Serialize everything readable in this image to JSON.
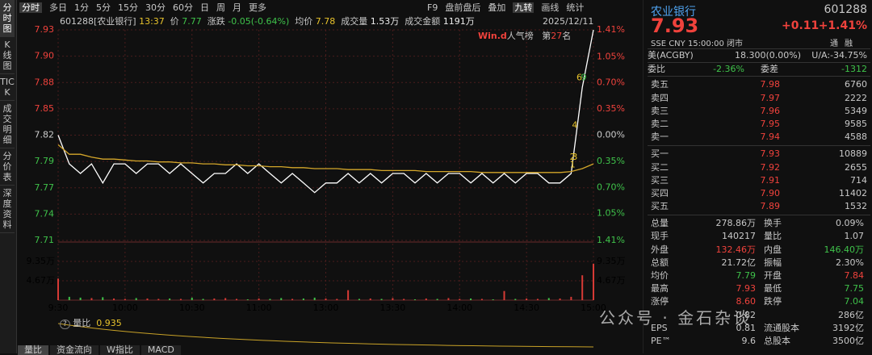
{
  "toolbar": {
    "periods": [
      "分时",
      "多日",
      "1分",
      "5分",
      "15分",
      "30分",
      "60分",
      "日",
      "周",
      "月",
      "更多"
    ],
    "tools": [
      "F9",
      "盘前盘后",
      "叠加",
      "九转",
      "画线",
      "统计"
    ]
  },
  "side_tabs": [
    "分时图",
    "K线图",
    "TICK",
    "成交明细",
    "分价表",
    "深度资料"
  ],
  "info": {
    "code": "601288[农业银行]",
    "time": "13:37",
    "price_label": "价",
    "price": "7.77",
    "change_label": "涨跌",
    "change": "-0.05(-0.64%)",
    "avg_label": "均价",
    "avg": "7.78",
    "vol_label": "成交量",
    "vol": "1.53万",
    "amount_label": "成交金额",
    "amount": "1191万",
    "date": "2025/12/11"
  },
  "rank": {
    "brand": "Win.d",
    "label": "人气榜",
    "pre": "第",
    "rank": "27",
    "post": "名"
  },
  "chart_data": {
    "type": "line",
    "x": [
      0,
      5,
      10,
      15,
      20,
      25,
      30,
      35,
      40,
      45,
      50,
      55,
      60,
      65,
      70,
      75,
      80,
      85,
      90,
      95,
      100,
      105,
      110,
      115,
      120,
      125,
      130,
      135,
      140,
      145,
      150,
      155,
      160,
      165,
      170,
      175,
      180,
      185,
      190,
      195,
      200,
      205,
      210,
      215,
      220,
      225,
      230,
      235,
      240
    ],
    "xlim": [
      0,
      240
    ],
    "xticks": [
      {
        "value": 0,
        "label": "9:30"
      },
      {
        "value": 30,
        "label": "10:00"
      },
      {
        "value": 60,
        "label": "10:30"
      },
      {
        "value": 90,
        "label": "11:00"
      },
      {
        "value": 120,
        "label": "13:00"
      },
      {
        "value": 150,
        "label": "13:30"
      },
      {
        "value": 180,
        "label": "14:00"
      },
      {
        "value": 210,
        "label": "14:30"
      },
      {
        "value": 240,
        "label": "15:00"
      }
    ],
    "series": [
      {
        "name": "价",
        "color": "#ffffff",
        "values": [
          7.82,
          7.79,
          7.78,
          7.79,
          7.77,
          7.79,
          7.79,
          7.78,
          7.79,
          7.79,
          7.78,
          7.79,
          7.78,
          7.77,
          7.78,
          7.78,
          7.79,
          7.78,
          7.79,
          7.78,
          7.77,
          7.78,
          7.77,
          7.76,
          7.77,
          7.77,
          7.78,
          7.77,
          7.78,
          7.77,
          7.78,
          7.78,
          7.77,
          7.78,
          7.77,
          7.78,
          7.78,
          7.77,
          7.78,
          7.77,
          7.78,
          7.77,
          7.78,
          7.78,
          7.77,
          7.77,
          7.78,
          7.87,
          7.93
        ]
      },
      {
        "name": "均价",
        "color": "#d4a62a",
        "values": [
          7.81,
          7.8,
          7.8,
          7.797,
          7.795,
          7.795,
          7.794,
          7.793,
          7.793,
          7.792,
          7.792,
          7.791,
          7.791,
          7.79,
          7.79,
          7.789,
          7.789,
          7.788,
          7.788,
          7.787,
          7.787,
          7.786,
          7.786,
          7.785,
          7.785,
          7.785,
          7.784,
          7.784,
          7.784,
          7.783,
          7.783,
          7.783,
          7.783,
          7.782,
          7.782,
          7.782,
          7.782,
          7.782,
          7.781,
          7.781,
          7.781,
          7.781,
          7.781,
          7.781,
          7.781,
          7.781,
          7.782,
          7.785,
          7.79
        ]
      }
    ],
    "ylim": [
      7.71,
      7.93
    ],
    "yticks": [
      {
        "value": 7.93,
        "label": "7.93"
      },
      {
        "value": 7.9025,
        "label": "7.90"
      },
      {
        "value": 7.875,
        "label": "7.88"
      },
      {
        "value": 7.8475,
        "label": "7.85"
      },
      {
        "value": 7.82,
        "label": "7.82"
      },
      {
        "value": 7.7925,
        "label": "7.79"
      },
      {
        "value": 7.765,
        "label": "7.77"
      },
      {
        "value": 7.7375,
        "label": "7.74"
      },
      {
        "value": 7.71,
        "label": "7.71"
      }
    ],
    "y2lim": [
      -1.41,
      1.41
    ],
    "y2ticks": [
      {
        "value": 1.41,
        "label": "1.41%"
      },
      {
        "value": 1.05,
        "label": "1.05%"
      },
      {
        "value": 0.7,
        "label": "0.70%"
      },
      {
        "value": 0.35,
        "label": "0.35%"
      },
      {
        "value": 0,
        "label": "0.00%"
      },
      {
        "value": -0.35,
        "label": "0.35%"
      },
      {
        "value": -0.7,
        "label": "0.70%"
      },
      {
        "value": -1.05,
        "label": "1.05%"
      },
      {
        "value": -1.41,
        "label": "1.41%"
      }
    ],
    "annotations": [
      {
        "text": "1",
        "x": 233,
        "y": 7.789,
        "color": "#e8c32c"
      },
      {
        "text": "2",
        "x": 233,
        "y": 7.797,
        "color": "#e8c32c"
      },
      {
        "text": "3",
        "x": 234,
        "y": 7.797,
        "color": "#e8c32c"
      },
      {
        "text": "4",
        "x": 234,
        "y": 7.83,
        "color": "#e8c32c"
      },
      {
        "text": "6",
        "x": 236,
        "y": 7.88,
        "color": "#e8c32c"
      },
      {
        "text": "9",
        "x": 238,
        "y": 7.88,
        "color": "#3fc24a"
      }
    ],
    "volume": {
      "type": "bar",
      "values": [
        52000,
        8000,
        6000,
        5000,
        7000,
        4000,
        3000,
        5000,
        4000,
        3000,
        4000,
        3000,
        6000,
        3000,
        4000,
        5000,
        3000,
        2000,
        4000,
        3000,
        5000,
        3000,
        4000,
        6000,
        4000,
        3000,
        24000,
        3000,
        4000,
        3000,
        5000,
        3000,
        2000,
        4000,
        3000,
        5000,
        3000,
        4000,
        3000,
        2000,
        22000,
        3000,
        4000,
        3000,
        5000,
        4000,
        8000,
        60000,
        88000
      ],
      "ylim": [
        0,
        130500
      ],
      "yticks": [
        {
          "value": 93500,
          "label": "9.35万"
        },
        {
          "value": 46700,
          "label": "4.67万"
        }
      ]
    }
  },
  "indicator": {
    "label": "量比",
    "value": "0.935"
  },
  "bottom_tabs": [
    "量比",
    "资金流向",
    "W指比",
    "MACD"
  ],
  "quote": {
    "name": "农业银行",
    "code": "601288",
    "price": "7.93",
    "change": "+0.11",
    "pct": "+1.41%",
    "meta": "SSE CNY 15:00:00 闭市",
    "badges": [
      "通",
      "融"
    ],
    "adr_label": "美(ACGBY)",
    "adr": "18.300(0.00%)",
    "ua": "U/A:-34.75%"
  },
  "book": {
    "ratio_label": "委比",
    "ratio": "-2.36%",
    "diff_label": "委差",
    "diff": "-1312",
    "asks": [
      [
        "卖五",
        "7.98",
        "6760"
      ],
      [
        "卖四",
        "7.97",
        "2222"
      ],
      [
        "卖三",
        "7.96",
        "5349"
      ],
      [
        "卖二",
        "7.95",
        "9585"
      ],
      [
        "卖一",
        "7.94",
        "4588"
      ]
    ],
    "bids": [
      [
        "买一",
        "7.93",
        "10889"
      ],
      [
        "买二",
        "7.92",
        "2655"
      ],
      [
        "买三",
        "7.91",
        "714"
      ],
      [
        "买四",
        "7.90",
        "11402"
      ],
      [
        "买五",
        "7.89",
        "1532"
      ]
    ]
  },
  "stats": [
    [
      "总量",
      "278.86万",
      "换手",
      "0.09%"
    ],
    [
      "现手",
      "140217",
      "量比",
      "1.07"
    ],
    [
      "外盘",
      "132.46万",
      "内盘",
      "146.40万"
    ],
    [
      "总额",
      "21.72亿",
      "振幅",
      "2.30%"
    ],
    [
      "均价",
      "7.79",
      "开盘",
      "7.84"
    ],
    [
      "最高",
      "7.93",
      "最低",
      "7.75"
    ],
    [
      "涨停",
      "8.60",
      "跌停",
      "7.04"
    ]
  ],
  "extra": [
    [
      "0.82",
      "286亿"
    ],
    [
      "EPS",
      "0.81",
      "流通股本",
      "3192亿"
    ],
    [
      "PE™",
      "9.6",
      "总股本",
      "3500亿"
    ]
  ],
  "watermark": "公众号 · 金石杂谈"
}
